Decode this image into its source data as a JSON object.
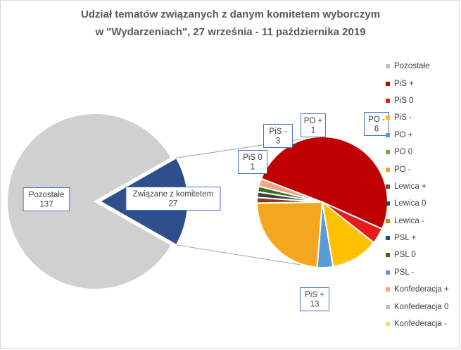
{
  "chart_data": [
    {
      "type": "pie",
      "role": "primary",
      "slices": [
        {
          "label": "Pozostałe",
          "value": 137,
          "color": "#d0d0d0",
          "text_lines": [
            "Pozostałe",
            "137"
          ]
        },
        {
          "label": "Związane z komitetem",
          "value": 27,
          "color": "#2e4f8c",
          "text_lines": [
            "Związane z komitetem",
            "27"
          ]
        }
      ]
    },
    {
      "type": "pie",
      "role": "secondary",
      "legend": "right",
      "slices": [
        {
          "label": "Pozostałe",
          "value": 0,
          "color": "#c0c0c0"
        },
        {
          "label": "PiS +",
          "value": 13,
          "color": "#c00000",
          "text_lines": [
            "PiS +",
            "13"
          ]
        },
        {
          "label": "PiS 0",
          "value": 1,
          "color": "#e41c1c",
          "text_lines": [
            "PiS 0",
            "1"
          ]
        },
        {
          "label": "PiS -",
          "value": 3,
          "color": "#ffc000",
          "text_lines": [
            "PiS -",
            "3"
          ]
        },
        {
          "label": "PO +",
          "value": 1,
          "color": "#5b9bd5",
          "text_lines": [
            "PO +",
            "1"
          ]
        },
        {
          "label": "PO 0",
          "value": 0,
          "color": "#70ad47"
        },
        {
          "label": "PO -",
          "value": 6,
          "color": "#f4a71e",
          "text_lines": [
            "PO -",
            "6"
          ]
        },
        {
          "label": "Lewica +",
          "value": 0.35,
          "color": "#8b3a1a"
        },
        {
          "label": "Lewica 0",
          "value": 0.35,
          "color": "#404040"
        },
        {
          "label": "Lewica -",
          "value": 0,
          "color": "#c98f00"
        },
        {
          "label": "PSL +",
          "value": 0,
          "color": "#1f4e79"
        },
        {
          "label": "PSL 0",
          "value": 0.35,
          "color": "#3a6b24"
        },
        {
          "label": "PSL -",
          "value": 0,
          "color": "#5b9bd5"
        },
        {
          "label": "Konfederacja +",
          "value": 0.5,
          "color": "#f4a582"
        },
        {
          "label": "Konfederacja 0",
          "value": 0,
          "color": "#bfbfbf"
        },
        {
          "label": "Konfederacja -",
          "value": 0,
          "color": "#ffd966"
        }
      ]
    }
  ],
  "title_lines": [
    "Udział tematów związanych z danym komitetem wyborczym",
    "w \"Wydarzeniach\", 27 września - 11 października 2019"
  ]
}
